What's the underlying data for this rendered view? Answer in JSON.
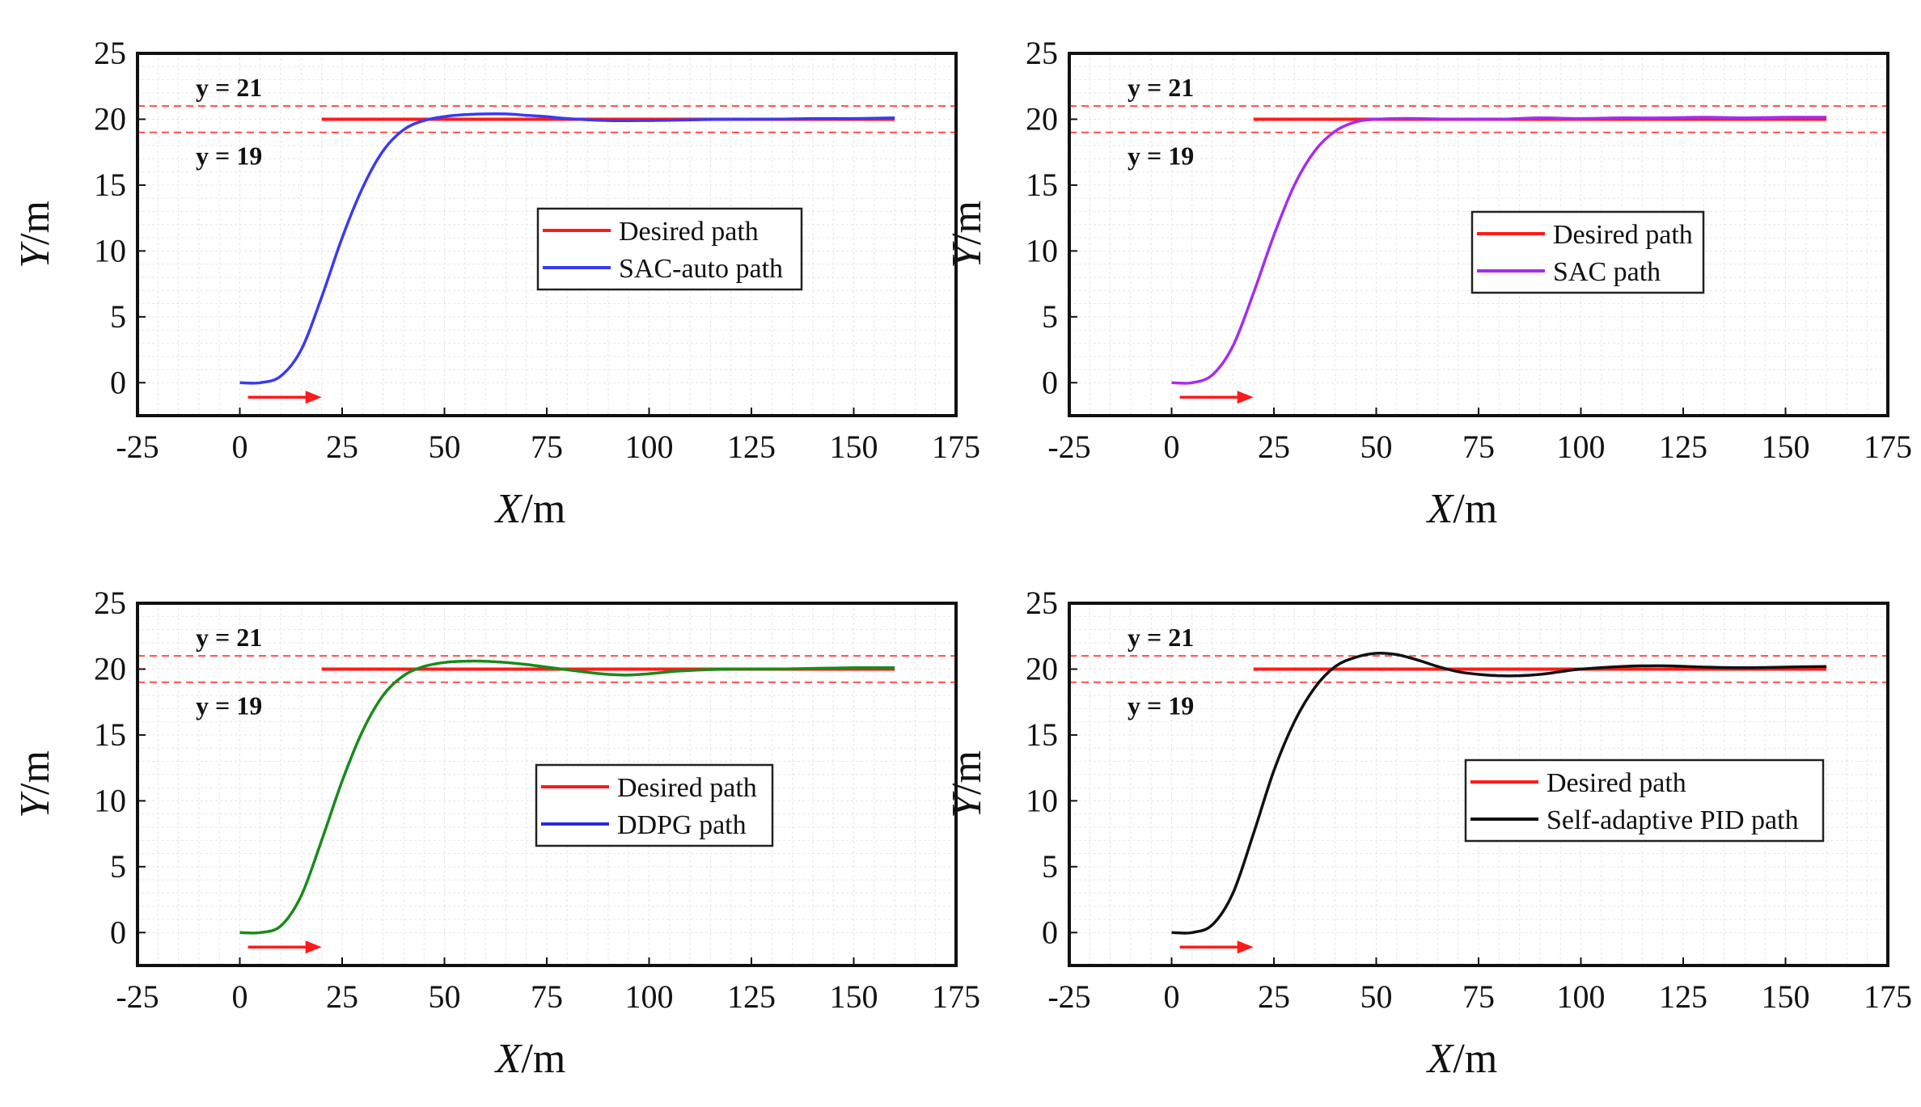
{
  "figure": {
    "colors": {
      "desired": "#ff1a1a",
      "bound": "#ff4d4d",
      "grid": "#e6e6e6",
      "frame": "#111111",
      "arrow": "#ff1a1a"
    },
    "xlabel_var": "X",
    "xlabel_unit": "/m",
    "ylabel_var": "Y",
    "ylabel_unit": "/m",
    "upper_label": "y = 21",
    "lower_label": "y = 19"
  },
  "chart_data": [
    {
      "type": "line",
      "id": "sac-auto",
      "xlim": [
        -25,
        175
      ],
      "ylim": [
        -2.5,
        25
      ],
      "xticks": [
        -25,
        0,
        25,
        50,
        75,
        100,
        125,
        150,
        175
      ],
      "yticks": [
        0,
        5,
        10,
        15,
        20,
        25
      ],
      "upper_bound": 21,
      "lower_bound": 19,
      "desired": {
        "x": [
          20,
          160
        ],
        "y": [
          20,
          20
        ]
      },
      "series": [
        {
          "name": "SAC-auto path",
          "color": "#3a3af2",
          "legend_color": "#3a3af2",
          "x": [
            0,
            5,
            10,
            15,
            20,
            25,
            30,
            35,
            40,
            45,
            50,
            55,
            60,
            65,
            70,
            75,
            80,
            90,
            100,
            110,
            120,
            130,
            140,
            150,
            160
          ],
          "y": [
            0,
            0,
            0.5,
            2.5,
            6.5,
            11,
            14.8,
            17.6,
            19.2,
            19.9,
            20.2,
            20.35,
            20.4,
            20.4,
            20.3,
            20.2,
            20.05,
            19.9,
            19.9,
            19.95,
            20,
            20,
            20.05,
            20.05,
            20.1
          ]
        }
      ],
      "legend": [
        {
          "label": "Desired path",
          "color": "#ff1a1a"
        },
        {
          "label": "SAC-auto path",
          "color": "#3a3af2"
        }
      ]
    },
    {
      "type": "line",
      "id": "sac",
      "xlim": [
        -25,
        175
      ],
      "ylim": [
        -2.5,
        25
      ],
      "xticks": [
        -25,
        0,
        25,
        50,
        75,
        100,
        125,
        150,
        175
      ],
      "yticks": [
        0,
        5,
        10,
        15,
        20,
        25
      ],
      "upper_bound": 21,
      "lower_bound": 19,
      "desired": {
        "x": [
          20,
          160
        ],
        "y": [
          20,
          20
        ]
      },
      "series": [
        {
          "name": "SAC path",
          "color": "#a52cf2",
          "legend_color": "#a52cf2",
          "x": [
            0,
            5,
            10,
            15,
            20,
            25,
            30,
            35,
            40,
            45,
            50,
            55,
            60,
            70,
            80,
            90,
            100,
            110,
            120,
            130,
            140,
            150,
            160
          ],
          "y": [
            0,
            0,
            0.6,
            2.8,
            6.8,
            11.2,
            15,
            17.6,
            19.1,
            19.8,
            20,
            20.05,
            20.05,
            20,
            20,
            20.1,
            20.05,
            20.1,
            20.1,
            20.15,
            20.1,
            20.15,
            20.15
          ]
        }
      ],
      "legend": [
        {
          "label": "Desired path",
          "color": "#ff1a1a"
        },
        {
          "label": "SAC path",
          "color": "#a52cf2"
        }
      ]
    },
    {
      "type": "line",
      "id": "ddpg",
      "xlim": [
        -25,
        175
      ],
      "ylim": [
        -2.5,
        25
      ],
      "xticks": [
        -25,
        0,
        25,
        50,
        75,
        100,
        125,
        150,
        175
      ],
      "yticks": [
        0,
        5,
        10,
        15,
        20,
        25
      ],
      "upper_bound": 21,
      "lower_bound": 19,
      "desired": {
        "x": [
          20,
          160
        ],
        "y": [
          20,
          20
        ]
      },
      "series": [
        {
          "name": "DDPG path",
          "color": "#1a8a1a",
          "legend_color": "#2a2ad8",
          "x": [
            0,
            5,
            10,
            15,
            20,
            25,
            30,
            35,
            40,
            45,
            50,
            55,
            60,
            65,
            70,
            75,
            80,
            85,
            90,
            95,
            100,
            105,
            110,
            120,
            130,
            140,
            150,
            160
          ],
          "y": [
            0,
            0,
            0.5,
            2.8,
            7,
            11.5,
            15.3,
            18,
            19.5,
            20.2,
            20.5,
            20.6,
            20.6,
            20.5,
            20.35,
            20.15,
            19.95,
            19.75,
            19.6,
            19.55,
            19.65,
            19.8,
            19.9,
            20,
            20,
            20.05,
            20.1,
            20.1
          ]
        }
      ],
      "legend": [
        {
          "label": "Desired path",
          "color": "#ff1a1a"
        },
        {
          "label": "DDPG path",
          "color": "#2a2ad8"
        }
      ]
    },
    {
      "type": "line",
      "id": "pid",
      "xlim": [
        -25,
        175
      ],
      "ylim": [
        -2.5,
        25
      ],
      "xticks": [
        -25,
        0,
        25,
        50,
        75,
        100,
        125,
        150,
        175
      ],
      "yticks": [
        0,
        5,
        10,
        15,
        20,
        25
      ],
      "upper_bound": 21,
      "lower_bound": 19,
      "desired": {
        "x": [
          20,
          160
        ],
        "y": [
          20,
          20
        ]
      },
      "series": [
        {
          "name": "Self-adaptive PID path",
          "color": "#111111",
          "legend_color": "#111111",
          "x": [
            0,
            5,
            10,
            15,
            20,
            25,
            30,
            35,
            40,
            45,
            50,
            55,
            60,
            65,
            70,
            75,
            80,
            85,
            90,
            95,
            100,
            110,
            120,
            130,
            140,
            150,
            160
          ],
          "y": [
            0,
            0,
            0.6,
            3,
            7.5,
            12.3,
            16,
            18.6,
            20.2,
            20.9,
            21.2,
            21.1,
            20.7,
            20.2,
            19.8,
            19.6,
            19.5,
            19.5,
            19.6,
            19.8,
            20,
            20.2,
            20.25,
            20.15,
            20.1,
            20.15,
            20.2
          ]
        }
      ],
      "legend": [
        {
          "label": "Desired path",
          "color": "#ff1a1a"
        },
        {
          "label": "Self-adaptive PID path",
          "color": "#111111"
        }
      ]
    }
  ]
}
